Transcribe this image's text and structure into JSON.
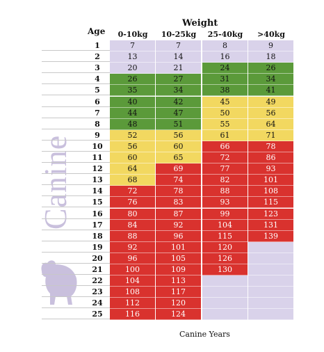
{
  "table": {
    "title": "Weight",
    "age_header": "Age",
    "columns": [
      "0-10kg",
      "10-25kg",
      "25-40kg",
      ">40kg"
    ],
    "rows": [
      {
        "age": "1",
        "values": [
          "7",
          "7",
          "8",
          "9"
        ],
        "colors": [
          "lav",
          "lav",
          "lav",
          "lav"
        ]
      },
      {
        "age": "2",
        "values": [
          "13",
          "14",
          "16",
          "18"
        ],
        "colors": [
          "lav",
          "lav",
          "lav",
          "lav"
        ]
      },
      {
        "age": "3",
        "values": [
          "20",
          "21",
          "24",
          "26"
        ],
        "colors": [
          "lav",
          "lav",
          "green",
          "green"
        ]
      },
      {
        "age": "4",
        "values": [
          "26",
          "27",
          "31",
          "34"
        ],
        "colors": [
          "green",
          "green",
          "green",
          "green"
        ]
      },
      {
        "age": "5",
        "values": [
          "35",
          "34",
          "38",
          "41"
        ],
        "colors": [
          "green",
          "green",
          "green",
          "green"
        ]
      },
      {
        "age": "6",
        "values": [
          "40",
          "42",
          "45",
          "49"
        ],
        "colors": [
          "green",
          "green",
          "yellow",
          "yellow"
        ]
      },
      {
        "age": "7",
        "values": [
          "44",
          "47",
          "50",
          "56"
        ],
        "colors": [
          "green",
          "green",
          "yellow",
          "yellow"
        ]
      },
      {
        "age": "8",
        "values": [
          "48",
          "51",
          "55",
          "64"
        ],
        "colors": [
          "green",
          "green",
          "yellow",
          "yellow"
        ]
      },
      {
        "age": "9",
        "values": [
          "52",
          "56",
          "61",
          "71"
        ],
        "colors": [
          "yellow",
          "yellow",
          "yellow",
          "yellow"
        ]
      },
      {
        "age": "10",
        "values": [
          "56",
          "60",
          "66",
          "78"
        ],
        "colors": [
          "yellow",
          "yellow",
          "red",
          "red"
        ]
      },
      {
        "age": "11",
        "values": [
          "60",
          "65",
          "72",
          "86"
        ],
        "colors": [
          "yellow",
          "yellow",
          "red",
          "red"
        ]
      },
      {
        "age": "12",
        "values": [
          "64",
          "69",
          "77",
          "93"
        ],
        "colors": [
          "yellow",
          "red",
          "red",
          "red"
        ]
      },
      {
        "age": "13",
        "values": [
          "68",
          "74",
          "82",
          "101"
        ],
        "colors": [
          "yellow",
          "red",
          "red",
          "red"
        ]
      },
      {
        "age": "14",
        "values": [
          "72",
          "78",
          "88",
          "108"
        ],
        "colors": [
          "red",
          "red",
          "red",
          "red"
        ]
      },
      {
        "age": "15",
        "values": [
          "76",
          "83",
          "93",
          "115"
        ],
        "colors": [
          "red",
          "red",
          "red",
          "red"
        ]
      },
      {
        "age": "16",
        "values": [
          "80",
          "87",
          "99",
          "123"
        ],
        "colors": [
          "red",
          "red",
          "red",
          "red"
        ]
      },
      {
        "age": "17",
        "values": [
          "84",
          "92",
          "104",
          "131"
        ],
        "colors": [
          "red",
          "red",
          "red",
          "red"
        ]
      },
      {
        "age": "18",
        "values": [
          "88",
          "96",
          "115",
          "139"
        ],
        "colors": [
          "red",
          "red",
          "red",
          "red"
        ]
      },
      {
        "age": "19",
        "values": [
          "92",
          "101",
          "120",
          ""
        ],
        "colors": [
          "red",
          "red",
          "red",
          "lav"
        ]
      },
      {
        "age": "20",
        "values": [
          "96",
          "105",
          "126",
          ""
        ],
        "colors": [
          "red",
          "red",
          "red",
          "lav"
        ]
      },
      {
        "age": "21",
        "values": [
          "100",
          "109",
          "130",
          ""
        ],
        "colors": [
          "red",
          "red",
          "red",
          "lav"
        ]
      },
      {
        "age": "22",
        "values": [
          "104",
          "113",
          "",
          ""
        ],
        "colors": [
          "red",
          "red",
          "lav",
          "lav"
        ]
      },
      {
        "age": "23",
        "values": [
          "108",
          "117",
          "",
          ""
        ],
        "colors": [
          "red",
          "red",
          "lav",
          "lav"
        ]
      },
      {
        "age": "24",
        "values": [
          "112",
          "120",
          "",
          ""
        ],
        "colors": [
          "red",
          "red",
          "lav",
          "lav"
        ]
      },
      {
        "age": "25",
        "values": [
          "116",
          "124",
          "",
          ""
        ],
        "colors": [
          "red",
          "red",
          "lav",
          "lav"
        ]
      }
    ],
    "footer": "Canine Years"
  },
  "side_label": "Canine",
  "colors": {
    "lav": "#d9d2ea",
    "green": "#5b9a3a",
    "yellow": "#f2d860",
    "red": "#d9322e",
    "side_text": "#c9c0dd"
  },
  "icons": {
    "dog": "dog-silhouette-icon"
  }
}
